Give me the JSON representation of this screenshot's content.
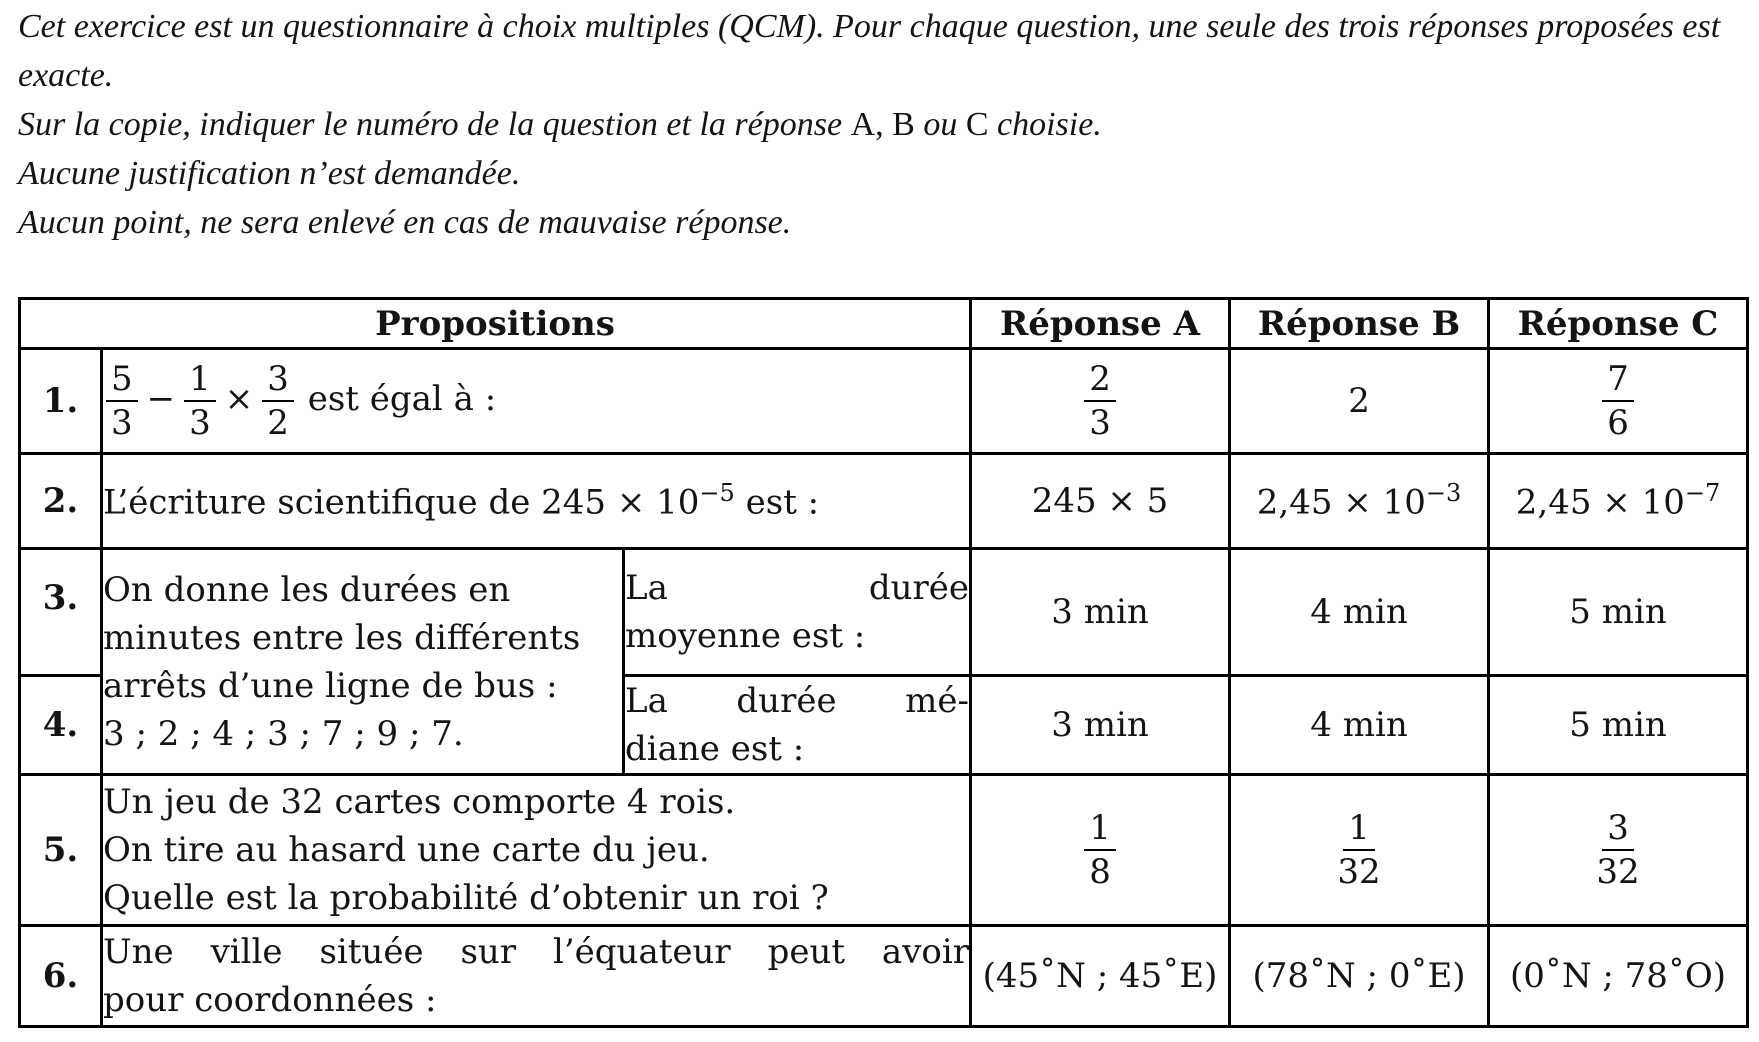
{
  "intro": {
    "line1": "Cet exercice est un questionnaire à choix multiples (QCM). Pour chaque question, une seule des trois réponses proposées est exacte.",
    "line2_before": "Sur la copie, indiquer le numéro de la question et la réponse",
    "line2_a": "A,",
    "line2_b": "B",
    "line2_ou": "ou",
    "line2_c": "C",
    "line2_after": "choisie.",
    "line3": "Aucune justification n’est demandée.",
    "line4": "Aucun point, ne sera enlevé en cas de mauvaise réponse."
  },
  "table": {
    "headers": [
      "Propositions",
      "Réponse A",
      "Réponse B",
      "Réponse C"
    ],
    "q1": {
      "num": "1.",
      "f1_n": "5",
      "f1_d": "3",
      "minus": "−",
      "f2_n": "1",
      "f2_d": "3",
      "times": "×",
      "f3_n": "3",
      "f3_d": "2",
      "tail": "est égal à :",
      "a_n": "2",
      "a_d": "3",
      "b": "2",
      "c_n": "7",
      "c_d": "6"
    },
    "q2": {
      "num": "2.",
      "text": "L’écriture scientifique de 245 × 10",
      "exp": "−5",
      "tail": " est :",
      "a": "245 × 5",
      "b_base": "2,45 × 10",
      "b_exp": "−3",
      "c_base": "2,45 × 10",
      "c_exp": "−7"
    },
    "q34_desc": [
      "On donne les durées en",
      "minutes entre les différents",
      "arrêts d’une ligne de bus :",
      "3 ; 2 ; 4 ; 3 ; 7 ; 9 ; 7."
    ],
    "q3": {
      "num": "3.",
      "line1": "La durée",
      "line2": "moyenne est :",
      "a": "3 min",
      "b": "4 min",
      "c": "5 min"
    },
    "q4": {
      "num": "4.",
      "line1": "La durée mé-",
      "line2": "diane est :",
      "a": "3 min",
      "b": "4 min",
      "c": "5 min"
    },
    "q5": {
      "num": "5.",
      "lines": [
        "Un jeu de 32 cartes comporte 4 rois.",
        "On tire au hasard une carte du jeu.",
        "Quelle est la probabilité d’obtenir un roi ?"
      ],
      "a_n": "1",
      "a_d": "8",
      "b_n": "1",
      "b_d": "32",
      "c_n": "3",
      "c_d": "32"
    },
    "q6": {
      "num": "6.",
      "line1": "Une ville située sur l’équateur peut avoir",
      "line2": "pour coordonnées :",
      "a": "(45˚N ; 45˚E)",
      "b": "(78˚N ; 0˚E)",
      "c": "(0˚N ; 78˚O)"
    }
  }
}
